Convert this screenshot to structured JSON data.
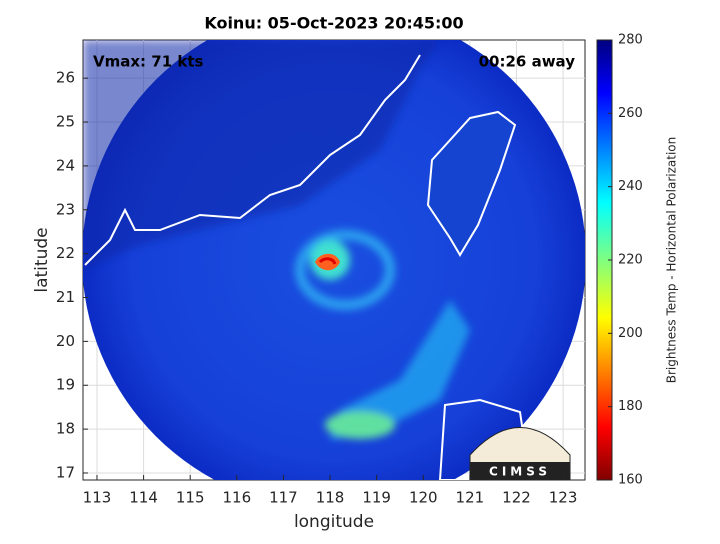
{
  "chart_data": {
    "type": "map",
    "title": "Koinu: 05-Oct-2023 20:45:00",
    "annotations": [
      "Vmax: 71 kts",
      "00:26 away"
    ],
    "logo": "CIMSS",
    "xlabel": "longitude",
    "ylabel": "latitude",
    "xlim": [
      112.7,
      123.47
    ],
    "ylim": [
      16.84,
      26.87
    ],
    "xticks": [
      113,
      114,
      115,
      116,
      117,
      118,
      119,
      120,
      121,
      122,
      123
    ],
    "yticks": [
      17,
      18,
      19,
      20,
      21,
      22,
      23,
      24,
      25,
      26
    ],
    "grid": true,
    "colorbar": {
      "label": "Brightness Temp - Horizontal Polarization",
      "lim": [
        160,
        280
      ],
      "ticks": [
        160,
        180,
        200,
        220,
        240,
        260,
        280
      ]
    }
  }
}
